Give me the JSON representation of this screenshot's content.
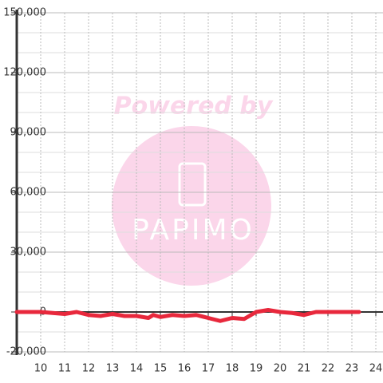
{
  "chart_data": {
    "type": "line",
    "watermark": [
      "Powered by",
      "PAPIMO"
    ],
    "x": [
      9,
      9.5,
      10,
      10.5,
      11,
      11.5,
      12,
      12.5,
      13,
      13.5,
      14,
      14.5,
      14.7,
      15,
      15.5,
      16,
      16.5,
      17,
      17.5,
      18,
      18.5,
      19,
      19.5,
      20,
      20.5,
      21,
      21.5,
      22,
      22.5,
      23,
      23.3
    ],
    "series": [
      {
        "color": "#e8283c",
        "values": [
          0,
          0,
          0,
          -500,
          -1000,
          0,
          -1500,
          -2000,
          -1000,
          -2000,
          -2000,
          -3000,
          -1500,
          -2500,
          -1500,
          -2000,
          -1500,
          -3000,
          -4500,
          -3000,
          -3500,
          0,
          1000,
          0,
          -500,
          -1500,
          0,
          0,
          0,
          0,
          0
        ]
      }
    ],
    "xlim": [
      9,
      24.3
    ],
    "xticks": [
      10,
      11,
      12,
      13,
      14,
      15,
      16,
      17,
      18,
      19,
      20,
      21,
      22,
      23,
      24
    ],
    "ylim": [
      -20000,
      150000
    ],
    "yticks": [
      {
        "value": -20000,
        "label": "-20,000"
      },
      0,
      {
        "value": 30000,
        "label": "30,000"
      },
      {
        "value": 60000,
        "label": "60,000"
      },
      {
        "value": 90000,
        "label": "90,000"
      },
      {
        "value": 120000,
        "label": "120,000"
      },
      {
        "value": 150000,
        "label": "150,000"
      }
    ],
    "y_minor_grid": [
      -10000,
      10000,
      20000,
      40000,
      50000,
      70000,
      80000,
      100000,
      110000,
      130000,
      140000
    ],
    "grid": true
  }
}
